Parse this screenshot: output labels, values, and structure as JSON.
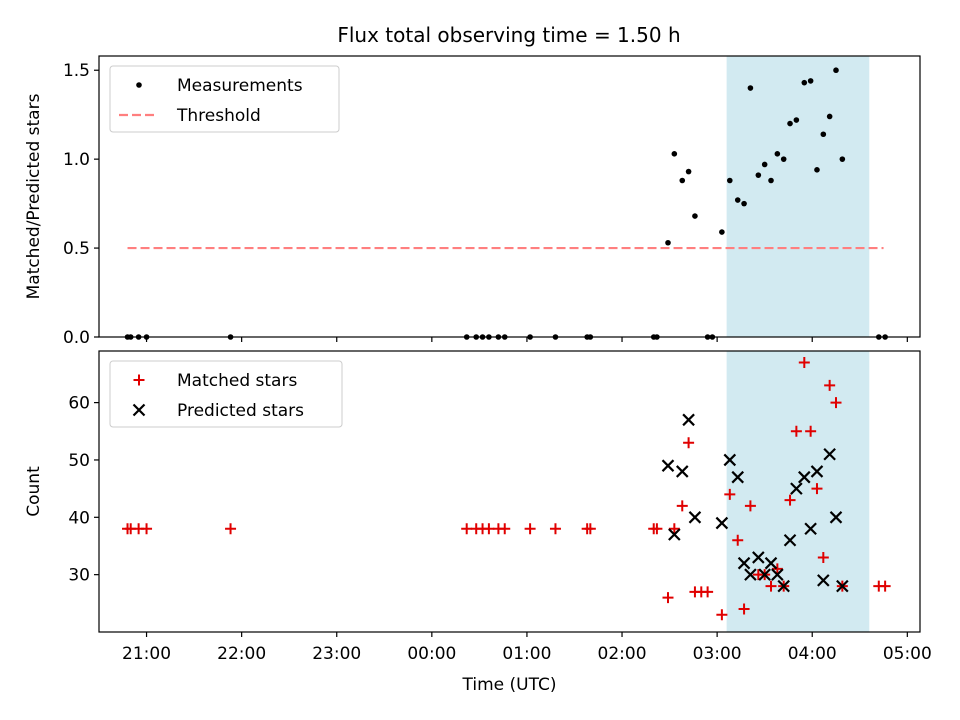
{
  "title": "Flux total observing time = 1.50 h",
  "colors": {
    "measurement": "#000000",
    "threshold": "#ff7f7f",
    "matched": "#e00000",
    "predicted": "#000000",
    "span_fill": "#add8e6"
  },
  "chart_data": [
    {
      "type": "scatter",
      "ylabel": "Matched/Predicted stars",
      "xlim": [
        "20:30",
        "05:08"
      ],
      "ylim": [
        0,
        1.58
      ],
      "yticks": [
        "0.0",
        "0.5",
        "1.0",
        "1.5"
      ],
      "ytick_values": [
        0,
        0.5,
        1.0,
        1.5
      ],
      "legend": {
        "placement": "top-left",
        "entries": [
          "Measurements",
          "Threshold"
        ]
      },
      "threshold": {
        "value": 0.5,
        "x_start": "20:48",
        "x_end": "04:45"
      },
      "observing_span": {
        "start": "03:06",
        "end": "04:36"
      },
      "series": [
        {
          "name": "Measurements",
          "points": [
            [
              "20:48",
              0
            ],
            [
              "20:50",
              0
            ],
            [
              "20:55",
              0
            ],
            [
              "21:00",
              0
            ],
            [
              "21:53",
              0
            ],
            [
              "00:22",
              0
            ],
            [
              "00:28",
              0
            ],
            [
              "00:32",
              0
            ],
            [
              "00:36",
              0
            ],
            [
              "00:42",
              0
            ],
            [
              "00:46",
              0
            ],
            [
              "01:02",
              0
            ],
            [
              "01:18",
              0
            ],
            [
              "01:38",
              0
            ],
            [
              "01:40",
              0
            ],
            [
              "02:20",
              0
            ],
            [
              "02:22",
              0
            ],
            [
              "02:29",
              0.53
            ],
            [
              "02:33",
              1.03
            ],
            [
              "02:38",
              0.88
            ],
            [
              "02:42",
              0.93
            ],
            [
              "02:46",
              0.68
            ],
            [
              "02:54",
              0
            ],
            [
              "02:57",
              0
            ],
            [
              "03:03",
              0.59
            ],
            [
              "03:08",
              0.88
            ],
            [
              "03:13",
              0.77
            ],
            [
              "03:17",
              0.75
            ],
            [
              "03:21",
              1.4
            ],
            [
              "03:26",
              0.91
            ],
            [
              "03:30",
              0.97
            ],
            [
              "03:34",
              0.88
            ],
            [
              "03:38",
              1.03
            ],
            [
              "03:42",
              1.0
            ],
            [
              "03:46",
              1.2
            ],
            [
              "03:50",
              1.22
            ],
            [
              "03:55",
              1.43
            ],
            [
              "03:59",
              1.44
            ],
            [
              "04:03",
              0.94
            ],
            [
              "04:07",
              1.14
            ],
            [
              "04:11",
              1.24
            ],
            [
              "04:15",
              1.5
            ],
            [
              "04:19",
              1.0
            ],
            [
              "04:42",
              0
            ],
            [
              "04:46",
              0
            ]
          ]
        }
      ]
    },
    {
      "type": "scatter",
      "xlabel": "Time (UTC)",
      "ylabel": "Count",
      "xlim": [
        "20:30",
        "05:08"
      ],
      "ylim": [
        20,
        69
      ],
      "yticks": [
        "30",
        "40",
        "50",
        "60"
      ],
      "ytick_values": [
        30,
        40,
        50,
        60
      ],
      "xticks": [
        "21:00",
        "22:00",
        "23:00",
        "00:00",
        "01:00",
        "02:00",
        "03:00",
        "04:00",
        "05:00"
      ],
      "legend": {
        "placement": "top-left",
        "entries": [
          "Matched stars",
          "Predicted stars"
        ]
      },
      "observing_span": {
        "start": "03:06",
        "end": "04:36"
      },
      "series": [
        {
          "name": "Matched stars",
          "points": [
            [
              "20:48",
              38
            ],
            [
              "20:50",
              38
            ],
            [
              "20:55",
              38
            ],
            [
              "21:00",
              38
            ],
            [
              "21:53",
              38
            ],
            [
              "00:22",
              38
            ],
            [
              "00:28",
              38
            ],
            [
              "00:32",
              38
            ],
            [
              "00:36",
              38
            ],
            [
              "00:42",
              38
            ],
            [
              "00:46",
              38
            ],
            [
              "01:02",
              38
            ],
            [
              "01:18",
              38
            ],
            [
              "01:38",
              38
            ],
            [
              "01:40",
              38
            ],
            [
              "02:20",
              38
            ],
            [
              "02:22",
              38
            ],
            [
              "02:29",
              26
            ],
            [
              "02:33",
              38
            ],
            [
              "02:38",
              42
            ],
            [
              "02:42",
              53
            ],
            [
              "02:46",
              27
            ],
            [
              "02:50",
              27
            ],
            [
              "02:54",
              27
            ],
            [
              "03:03",
              23
            ],
            [
              "03:08",
              44
            ],
            [
              "03:13",
              36
            ],
            [
              "03:17",
              24
            ],
            [
              "03:21",
              42
            ],
            [
              "03:26",
              30
            ],
            [
              "03:30",
              30
            ],
            [
              "03:34",
              28
            ],
            [
              "03:38",
              31
            ],
            [
              "03:42",
              28
            ],
            [
              "03:46",
              43
            ],
            [
              "03:50",
              55
            ],
            [
              "03:55",
              67
            ],
            [
              "03:59",
              55
            ],
            [
              "04:03",
              45
            ],
            [
              "04:07",
              33
            ],
            [
              "04:11",
              63
            ],
            [
              "04:15",
              60
            ],
            [
              "04:19",
              28
            ],
            [
              "04:42",
              28
            ],
            [
              "04:46",
              28
            ]
          ]
        },
        {
          "name": "Predicted stars",
          "points": [
            [
              "02:29",
              49
            ],
            [
              "02:33",
              37
            ],
            [
              "02:38",
              48
            ],
            [
              "02:42",
              57
            ],
            [
              "02:46",
              40
            ],
            [
              "03:03",
              39
            ],
            [
              "03:08",
              50
            ],
            [
              "03:13",
              47
            ],
            [
              "03:17",
              32
            ],
            [
              "03:21",
              30
            ],
            [
              "03:26",
              33
            ],
            [
              "03:30",
              30
            ],
            [
              "03:34",
              32
            ],
            [
              "03:38",
              30
            ],
            [
              "03:42",
              28
            ],
            [
              "03:46",
              36
            ],
            [
              "03:50",
              45
            ],
            [
              "03:55",
              47
            ],
            [
              "03:59",
              38
            ],
            [
              "04:03",
              48
            ],
            [
              "04:07",
              29
            ],
            [
              "04:11",
              51
            ],
            [
              "04:15",
              40
            ],
            [
              "04:19",
              28
            ]
          ]
        }
      ]
    }
  ]
}
